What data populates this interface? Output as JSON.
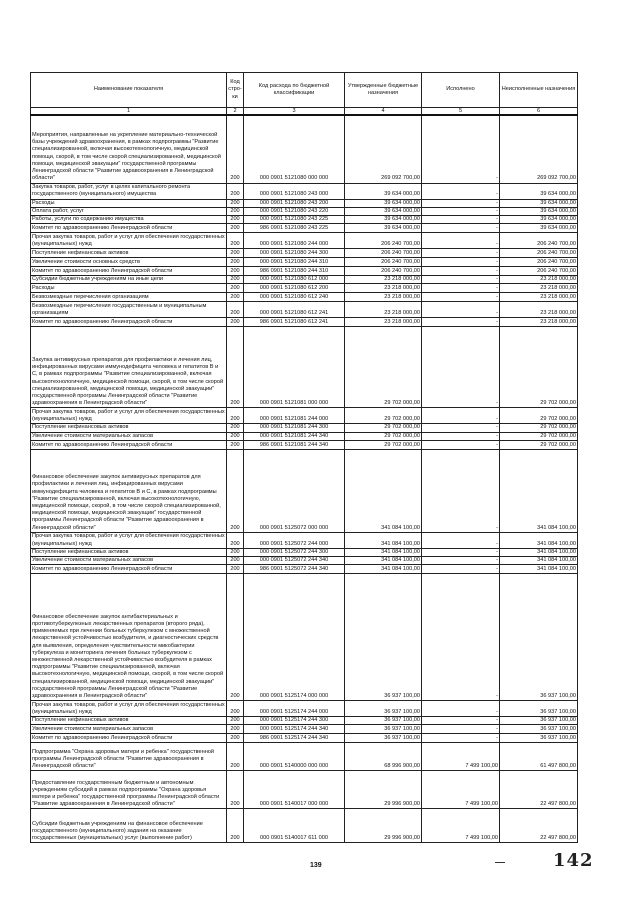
{
  "table": {
    "headers": [
      "Наименование показателя",
      "Код стро-ки",
      "Код расхода по бюджетной классификации",
      "Утвержденные бюджетные назначения",
      "Исполнено",
      "Неисполненные назначения"
    ],
    "column_numbers": [
      "1",
      "2",
      "3",
      "4",
      "5",
      "6"
    ],
    "rows": [
      {
        "name": "Мероприятия, направленные на укрепление материально-технической базы учреждений здравоохранения, в рамках подпрограммы \"Развитие специализированной, включая высокотехнологичную, медицинской помощи, скорой, в том числе скорой специализированной, медицинской помощи, медицинской эвакуации\" государственной программы Ленинградской области \"Развитие здравоохранения в Ленинградской области\"",
        "line": "200",
        "code": "000 0901 5121080 000 000",
        "approved": "269 092 700,00",
        "executed": "-",
        "remaining": "269 092 700,00"
      },
      {
        "name": "Закупка товаров, работ, услуг в целях капитального ремонта государственного (муниципального) имущества",
        "line": "200",
        "code": "000 0901 5121080 243 000",
        "approved": "39 634 000,00",
        "executed": "-",
        "remaining": "39 634 000,00"
      },
      {
        "name": "Расходы",
        "line": "200",
        "code": "000 0901 5121080 243 200",
        "approved": "39 634 000,00",
        "executed": "-",
        "remaining": "39 634 000,00"
      },
      {
        "name": "Оплата работ, услуг",
        "line": "200",
        "code": "000 0901 5121080 243 220",
        "approved": "39 634 000,00",
        "executed": "-",
        "remaining": "39 634 000,00"
      },
      {
        "name": "Работы, услуги по содержанию имущества",
        "line": "200",
        "code": "000 0901 5121080 243 225",
        "approved": "39 634 000,00",
        "executed": "-",
        "remaining": "39 634 000,00"
      },
      {
        "name": "Комитет по здравоохранению Ленинградской области",
        "line": "200",
        "code": "986 0901 5121080 243 225",
        "approved": "39 634 000,00",
        "executed": "-",
        "remaining": "39 634 000,00"
      },
      {
        "name": "Прочая закупка товаров, работ и услуг для обеспечения государственных (муниципальных) нужд",
        "line": "200",
        "code": "000 0901 5121080 244 000",
        "approved": "206 240 700,00",
        "executed": "-",
        "remaining": "206 240 700,00"
      },
      {
        "name": "Поступление нефинансовых активов",
        "line": "200",
        "code": "000 0901 5121080 244 300",
        "approved": "206 240 700,00",
        "executed": "-",
        "remaining": "206 240 700,00"
      },
      {
        "name": "Увеличение стоимости основных средств",
        "line": "200",
        "code": "000 0901 5121080 244 310",
        "approved": "206 240 700,00",
        "executed": "-",
        "remaining": "206 240 700,00"
      },
      {
        "name": "Комитет по здравоохранению Ленинградской области",
        "line": "200",
        "code": "986 0901 5121080 244 310",
        "approved": "206 240 700,00",
        "executed": "-",
        "remaining": "206 240 700,00"
      },
      {
        "name": "Субсидии бюджетным учреждениям на иные цели",
        "line": "200",
        "code": "000 0901 5121080 612 000",
        "approved": "23 218 000,00",
        "executed": "-",
        "remaining": "23 218 000,00"
      },
      {
        "name": "Расходы",
        "line": "200",
        "code": "000 0901 5121080 612 200",
        "approved": "23 218 000,00",
        "executed": "-",
        "remaining": "23 218 000,00"
      },
      {
        "name": "Безвозмездные перечисления организациям",
        "line": "200",
        "code": "000 0901 5121080 612 240",
        "approved": "23 218 000,00",
        "executed": "-",
        "remaining": "23 218 000,00"
      },
      {
        "name": "Безвозмездные перечисления государственным и муниципальным организациям",
        "line": "200",
        "code": "000 0901 5121080 612 241",
        "approved": "23 218 000,00",
        "executed": "-",
        "remaining": "23 218 000,00"
      },
      {
        "name": "Комитет по здравоохранению Ленинградской области",
        "line": "200",
        "code": "986 0901 5121080 612 241",
        "approved": "23 218 000,00",
        "executed": "-",
        "remaining": "23 218 000,00"
      },
      {
        "name": "Закупка антивирусных препаратов для профилактики и лечения лиц, инфицированных вирусами иммунодефицита человека и гепатитов В и С, в рамках подпрограммы \"Развитие специализированной, включая высокотехнологичную, медицинской помощи, скорой, в том числе скорой специализированной, медицинской помощи, медицинской эвакуации\" государственной программы Ленинградской области \"Развитие здравоохранения в Ленинградской области\"",
        "line": "200",
        "code": "000 0901 5121081 000 000",
        "approved": "29 702 000,00",
        "executed": "-",
        "remaining": "29 702 000,00"
      },
      {
        "name": "Прочая закупка товаров, работ и услуг для обеспечения государственных (муниципальных) нужд",
        "line": "200",
        "code": "000 0901 5121081 244 000",
        "approved": "29 702 000,00",
        "executed": "-",
        "remaining": "29 702 000,00"
      },
      {
        "name": "Поступление нефинансовых активов",
        "line": "200",
        "code": "000 0901 5121081 244 300",
        "approved": "29 702 000,00",
        "executed": "-",
        "remaining": "29 702 000,00"
      },
      {
        "name": "Увеличение стоимости материальных запасов",
        "line": "200",
        "code": "000 0901 5121081 244 340",
        "approved": "29 702 000,00",
        "executed": "-",
        "remaining": "29 702 000,00"
      },
      {
        "name": "Комитет по здравоохранению Ленинградской области",
        "line": "200",
        "code": "986 0901 5121081 244 340",
        "approved": "29 702 000,00",
        "executed": "-",
        "remaining": "29 702 000,00"
      },
      {
        "name": "Финансовое обеспечение закупок антивирусных препаратов для профилактики и лечения лиц, инфицированных вирусами иммунодефицита человека и гепатитов В и С, в рамках подпрограммы \"Развитие специализированной, включая высокотехнологичную, медицинской помощи, скорой, в том числе скорой специализированной, медицинской помощи, медицинской эвакуации\" государственной программы Ленинградской области \"Развитие здравоохранения в Ленинградской области\"",
        "line": "200",
        "code": "000 0901 5125072 000 000",
        "approved": "341 084 100,00",
        "executed": "-",
        "remaining": "341 084 100,00"
      },
      {
        "name": "Прочая закупка товаров, работ и услуг для обеспечения государственных (муниципальных) нужд",
        "line": "200",
        "code": "000 0901 5125072 244 000",
        "approved": "341 084 100,00",
        "executed": "-",
        "remaining": "341 084 100,00"
      },
      {
        "name": "Поступление нефинансовых активов",
        "line": "200",
        "code": "000 0901 5125072 244 300",
        "approved": "341 084 100,00",
        "executed": "-",
        "remaining": "341 084 100,00"
      },
      {
        "name": "Увеличение стоимости материальных запасов",
        "line": "200",
        "code": "000 0901 5125072 244 340",
        "approved": "341 084 100,00",
        "executed": "-",
        "remaining": "341 084 100,00"
      },
      {
        "name": "Комитет по здравоохранению Ленинградской области",
        "line": "200",
        "code": "986 0901 5125072 244 340",
        "approved": "341 084 100,00",
        "executed": "-",
        "remaining": "341 084 100,00"
      },
      {
        "name": "Финансовое обеспечение закупок антибактериальных и противотуберкулезных лекарственных препаратов (второго ряда), применяемых при лечении больных туберкулезом с множественной лекарственной устойчивостью возбудителя, и диагностических средств для выявления, определения чувствительности микобактерии туберкулеза и мониторинга лечения больных туберкулезом с множественной лекарственной устойчивостью возбудителя в рамках подпрограммы \"Развитие специализированной, включая высокотехнологичную, медицинской помощи, скорой, в том числе скорой специализированной, медицинской помощи, медицинской эвакуации\" государственной программы Ленинградской области \"Развитие здравоохранения в Ленинградской области\"",
        "line": "200",
        "code": "000 0901 5125174 000 000",
        "approved": "36 937 100,00",
        "executed": "-",
        "remaining": "36 937 100,00"
      },
      {
        "name": "Прочая закупка товаров, работ и услуг для обеспечения государственных (муниципальных) нужд",
        "line": "200",
        "code": "000 0901 5125174 244 000",
        "approved": "36 937 100,00",
        "executed": "-",
        "remaining": "36 937 100,00"
      },
      {
        "name": "Поступление нефинансовых активов",
        "line": "200",
        "code": "000 0901 5125174 244 300",
        "approved": "36 937 100,00",
        "executed": "-",
        "remaining": "36 937 100,00"
      },
      {
        "name": "Увеличение стоимости материальных запасов",
        "line": "200",
        "code": "000 0901 5125174 244 340",
        "approved": "36 937 100,00",
        "executed": "-",
        "remaining": "36 937 100,00"
      },
      {
        "name": "Комитет по здравоохранению Ленинградской области",
        "line": "200",
        "code": "986 0901 5125174 244 340",
        "approved": "36 937 100,00",
        "executed": "-",
        "remaining": "36 937 100,00"
      },
      {
        "name": "Подпрограмма \"Охрана здоровья матери и ребенка\" государственной программы Ленинградской области \"Развитие здравоохранения в Ленинградской области\"",
        "line": "200",
        "code": "000 0901 5140000 000 000",
        "approved": "68 996 900,00",
        "executed": "7 499 100,00",
        "remaining": "61 497 800,00"
      },
      {
        "name": "Предоставление государственным бюджетным и автономным учреждениям субсидий в рамках подпрограммы \"Охрана здоровья матери и ребенка\" государственной программы Ленинградской области \"Развитие здравоохранения в Ленинградской области\"",
        "line": "200",
        "code": "000 0901 5140017 000 000",
        "approved": "29 996 900,00",
        "executed": "7 499 100,00",
        "remaining": "22 497 800,00"
      },
      {
        "name": "Субсидии бюджетным учреждениям на финансовое обеспечение государственного (муниципального) задания на оказание государственных (муниципальных) услуг (выполнение работ)",
        "line": "200",
        "code": "000 0901 5140017 611 000",
        "approved": "29 996 900,00",
        "executed": "7 499 100,00",
        "remaining": "22 497 800,00"
      }
    ]
  },
  "footer": {
    "page_number": "139",
    "handwritten_number": "142"
  }
}
